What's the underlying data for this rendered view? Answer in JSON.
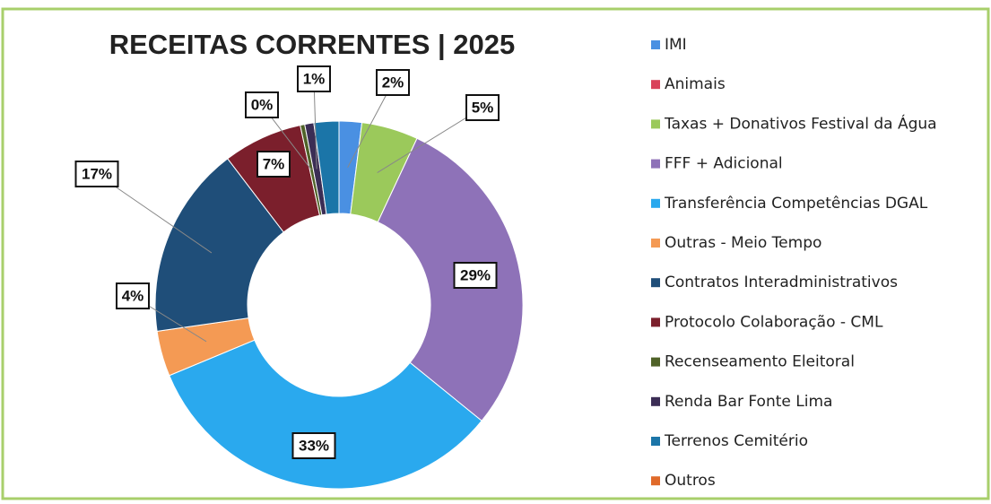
{
  "chart_data": {
    "type": "donut",
    "title": "RECEITAS CORRENTES | 2025",
    "categories": [
      "IMI",
      "Animais",
      "Taxas + Donativos Festival da Água",
      "FFF + Adicional",
      "Transferência Competências DGAL",
      "Outras - Meio Tempo",
      "Contratos Interadministrativos",
      "Protocolo Colaboração - CML",
      "Recenseamento Eleitoral",
      "Renda Bar Fonte Lima",
      "Terrenos Cemitério",
      "Outros"
    ],
    "values": [
      2,
      0,
      5,
      29,
      33,
      4,
      17,
      7,
      0.4,
      0.8,
      2.2,
      0
    ],
    "value_labels": [
      "2%",
      null,
      "5%",
      "29%",
      "33%",
      "4%",
      "17%",
      "7%",
      "0%",
      "1%",
      null,
      null
    ],
    "colors": [
      "#4a90e2",
      "#d9415a",
      "#9bc95b",
      "#8e72b8",
      "#2aa9ee",
      "#f49a54",
      "#1f4e79",
      "#7b1f2c",
      "#4f6228",
      "#3b2d55",
      "#1b75a8",
      "#e06a2a"
    ],
    "legend": "right"
  }
}
